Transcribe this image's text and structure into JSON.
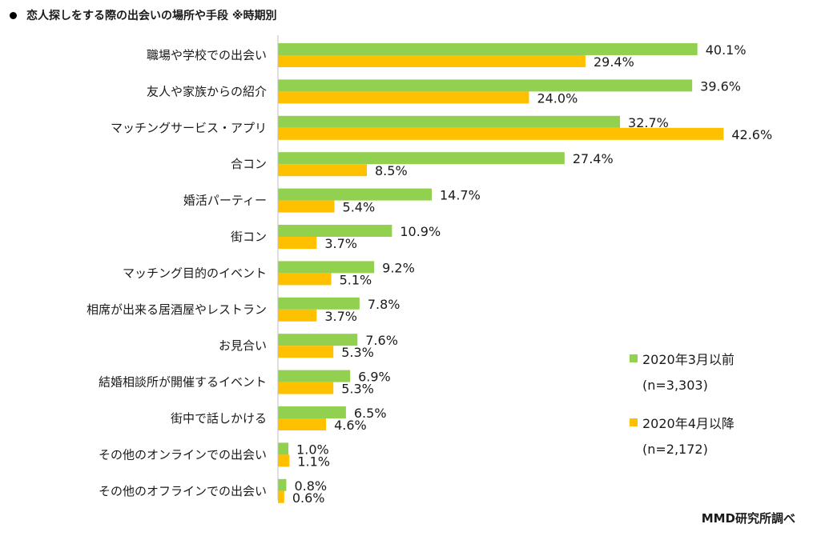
{
  "title": "恋人探しをする際の出会いの場所や手段 ※時期別",
  "source": "MMD研究所調べ",
  "colors": {
    "series1": "#92d050",
    "series2": "#ffc000",
    "axis": "#bfbfbf"
  },
  "legend": {
    "items": [
      {
        "label": "2020年3月以前",
        "note": "(n=3,303)"
      },
      {
        "label": "2020年4月以降",
        "note": "(n=2,172)"
      }
    ]
  },
  "chart_data": {
    "type": "bar",
    "orientation": "horizontal",
    "unit": "%",
    "categories": [
      "職場や学校での出会い",
      "友人や家族からの紹介",
      "マッチングサービス・アプリ",
      "合コン",
      "婚活パーティー",
      "街コン",
      "マッチング目的のイベント",
      "相席が出来る居酒屋やレストラン",
      "お見合い",
      "結婚相談所が開催するイベント",
      "街中で話しかける",
      "その他のオンラインでの出会い",
      "その他のオフラインでの出会い"
    ],
    "series": [
      {
        "name": "2020年3月以前",
        "values": [
          40.1,
          39.6,
          32.7,
          27.4,
          14.7,
          10.9,
          9.2,
          7.8,
          7.6,
          6.9,
          6.5,
          1.0,
          0.8
        ]
      },
      {
        "name": "2020年4月以降",
        "values": [
          29.4,
          24.0,
          42.6,
          8.5,
          5.4,
          3.7,
          5.1,
          3.7,
          5.3,
          5.3,
          4.6,
          1.1,
          0.6
        ]
      }
    ],
    "legend_position": "right",
    "grid": false
  }
}
